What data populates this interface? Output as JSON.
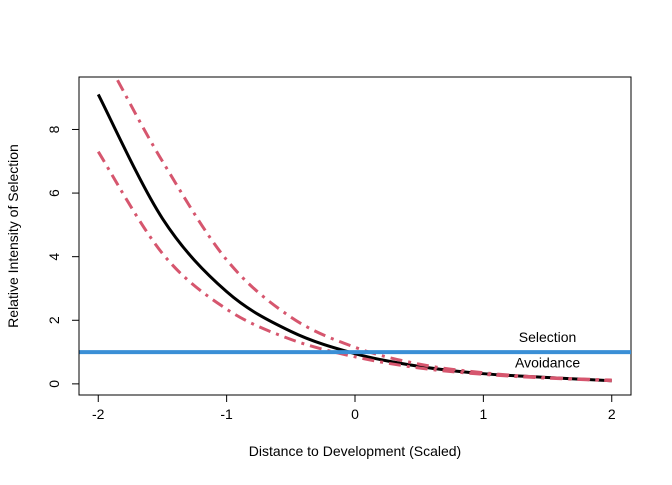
{
  "chart_data": {
    "type": "line",
    "xlabel": "Distance to Development (Scaled)",
    "ylabel": "Relative Intensity of Selection",
    "xlim": [
      -2.15,
      2.15
    ],
    "ylim": [
      -0.35,
      9.65
    ],
    "x_ticks": [
      -2,
      -1,
      0,
      1,
      2
    ],
    "y_ticks": [
      0,
      2,
      4,
      6,
      8
    ],
    "grid": false,
    "legend": "none",
    "series": [
      {
        "style": "solid",
        "color": "#000000",
        "points": [
          [
            -2,
            9.1
          ],
          [
            -1.5,
            5.2
          ],
          [
            -1,
            2.9
          ],
          [
            -0.5,
            1.65
          ],
          [
            0,
            0.95
          ],
          [
            0.5,
            0.55
          ],
          [
            1,
            0.32
          ],
          [
            1.5,
            0.2
          ],
          [
            2,
            0.1
          ]
        ]
      },
      {
        "style": "dash-dot",
        "color": "#d6566e",
        "points": [
          [
            -1.85,
            9.55
          ],
          [
            -1.5,
            7.0
          ],
          [
            -1,
            3.9
          ],
          [
            -0.5,
            2.1
          ],
          [
            0,
            1.15
          ],
          [
            0.5,
            0.62
          ],
          [
            1,
            0.35
          ],
          [
            1.5,
            0.2
          ],
          [
            2,
            0.12
          ]
        ]
      },
      {
        "style": "dash-dot",
        "color": "#d6566e",
        "points": [
          [
            -2,
            7.3
          ],
          [
            -1.5,
            4.1
          ],
          [
            -1,
            2.35
          ],
          [
            -0.5,
            1.4
          ],
          [
            0,
            0.85
          ],
          [
            0.5,
            0.5
          ],
          [
            1,
            0.3
          ],
          [
            1.5,
            0.18
          ],
          [
            2,
            0.1
          ]
        ]
      }
    ],
    "reference_line": {
      "y": 1,
      "color": "#3a8fd6"
    },
    "annotations": [
      {
        "text": "Selection",
        "x": 1.5,
        "y": 1.32
      },
      {
        "text": "Avoidance",
        "x": 1.5,
        "y": 0.52
      }
    ]
  }
}
